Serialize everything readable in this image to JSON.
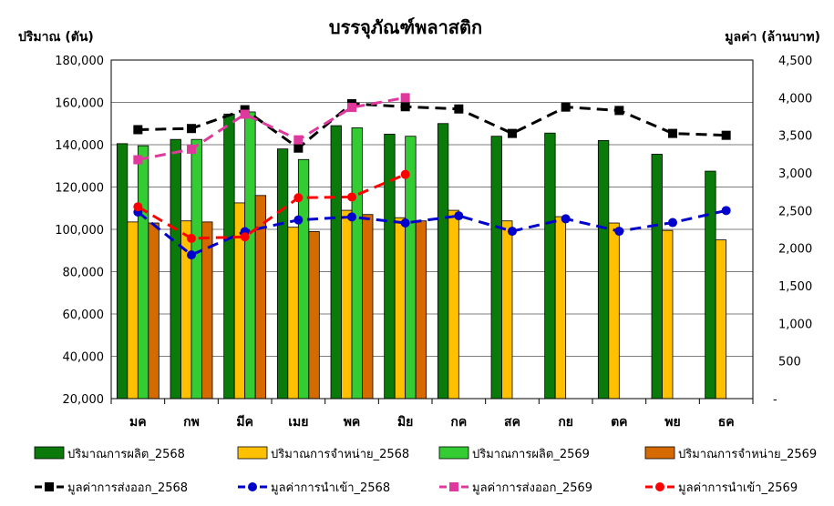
{
  "chart_data": {
    "type": "bar",
    "title": "บรรจุภัณฑ์พลาสติก",
    "ylabel": "ปริมาณ (ตัน)",
    "y2label": "มูลค่า (ล้านบาท)",
    "categories": [
      "มค",
      "กพ",
      "มีค",
      "เมย",
      "พค",
      "มิย",
      "กค",
      "สค",
      "กย",
      "ตค",
      "พย",
      "ธค"
    ],
    "ylim": [
      20000,
      180000
    ],
    "y2lim": [
      0,
      4500
    ],
    "yticks": [
      "20,000",
      "40,000",
      "60,000",
      "80,000",
      "100,000",
      "120,000",
      "140,000",
      "160,000",
      "180,000"
    ],
    "y2ticks": [
      "-",
      "500",
      "1,000",
      "1,500",
      "2,000",
      "2,500",
      "3,000",
      "3,500",
      "4,000",
      "4,500"
    ],
    "grid": true,
    "legend_position": "bottom",
    "bar_series": [
      {
        "name": "ปริมาณการผลิต_2568",
        "color": "#0a7a0a",
        "values": [
          140500,
          142500,
          154500,
          138000,
          149000,
          145000,
          150000,
          144000,
          145500,
          142000,
          135500,
          127500
        ]
      },
      {
        "name": "ปริมาณการจำหน่าย_2568",
        "color": "#ffc000",
        "values": [
          103500,
          104000,
          112500,
          101000,
          109000,
          105500,
          109000,
          104000,
          106000,
          103000,
          99500,
          95000
        ]
      },
      {
        "name": "ปริมาณการผลิต_2569",
        "color": "#33cc33",
        "values": [
          139500,
          142500,
          155500,
          133000,
          148000,
          144000,
          null,
          null,
          null,
          null,
          null,
          null
        ]
      },
      {
        "name": "ปริมาณการจำหน่าย_2569",
        "color": "#d46a00",
        "values": [
          103000,
          103500,
          116000,
          99000,
          107000,
          104000,
          null,
          null,
          null,
          null,
          null,
          null
        ]
      }
    ],
    "line_series": [
      {
        "name": "มูลค่าการส่งออก_2568",
        "color": "#000000",
        "marker": "square",
        "values": [
          3575,
          3590,
          3840,
          3330,
          3920,
          3880,
          3850,
          3525,
          3875,
          3830,
          3525,
          3500
        ]
      },
      {
        "name": "มูลค่าการนำเข้า_2568",
        "color": "#0000cc",
        "marker": "circle",
        "values": [
          2480,
          1910,
          2220,
          2375,
          2415,
          2335,
          2430,
          2225,
          2390,
          2225,
          2340,
          2500
        ]
      },
      {
        "name": "มูลค่าการส่งออก_2569",
        "color": "#e0399e",
        "marker": "square",
        "values": [
          3175,
          3315,
          3780,
          3440,
          3870,
          4000,
          null,
          null,
          null,
          null,
          null,
          null
        ]
      },
      {
        "name": "มูลค่าการนำเข้า_2569",
        "color": "#ff0000",
        "marker": "circle",
        "values": [
          2550,
          2130,
          2150,
          2670,
          2680,
          2980,
          null,
          null,
          null,
          null,
          null,
          null
        ]
      }
    ]
  }
}
